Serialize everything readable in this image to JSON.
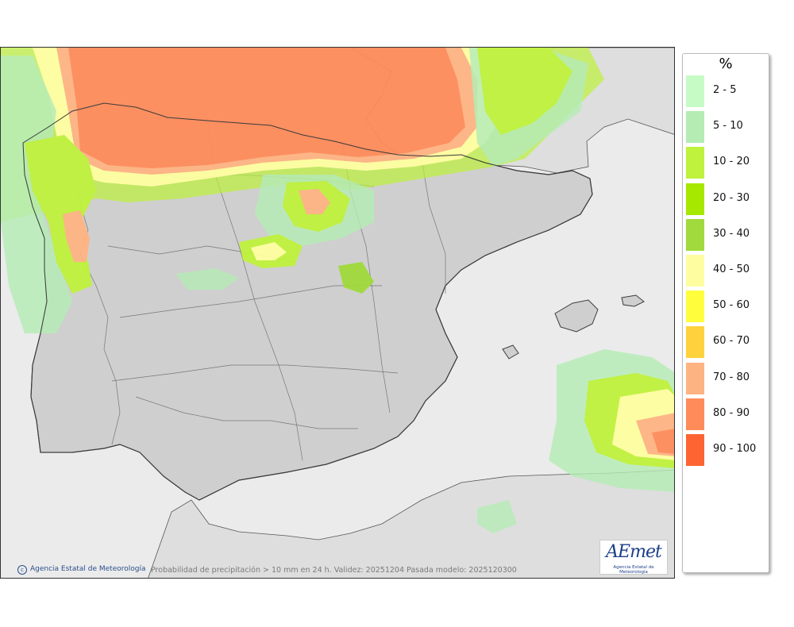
{
  "legend": {
    "unit": "%",
    "classes": [
      {
        "label": "2 - 5",
        "color": "#c6fbc6"
      },
      {
        "label": "5 - 10",
        "color": "#b4ecb4"
      },
      {
        "label": "10 - 20",
        "color": "#bef23c"
      },
      {
        "label": "20 - 30",
        "color": "#a6e800"
      },
      {
        "label": "30 - 40",
        "color": "#a0da3c"
      },
      {
        "label": "40 - 50",
        "color": "#fefea0"
      },
      {
        "label": "50 - 60",
        "color": "#fefe3c"
      },
      {
        "label": "60 - 70",
        "color": "#fed23c"
      },
      {
        "label": "70 - 80",
        "color": "#feb482"
      },
      {
        "label": "80 - 90",
        "color": "#fe8c5a"
      },
      {
        "label": "90 - 100",
        "color": "#fe6432"
      }
    ]
  },
  "credit": {
    "icon": "copyright-icon",
    "text": "Agencia Estatal de Meteorología"
  },
  "caption": "Probabilidad de precipitación > 10 mm en 24 h. Validez: 20251204 Pasada modelo: 2025120300",
  "logo": {
    "word": "AEmet",
    "subtitle": "Agencia Estatal de Meteorología"
  },
  "colors": {
    "land": "#cfcfcf",
    "sea": "#ebebeb",
    "border": "#3c3c3c",
    "brand": "#1c3f8a"
  }
}
